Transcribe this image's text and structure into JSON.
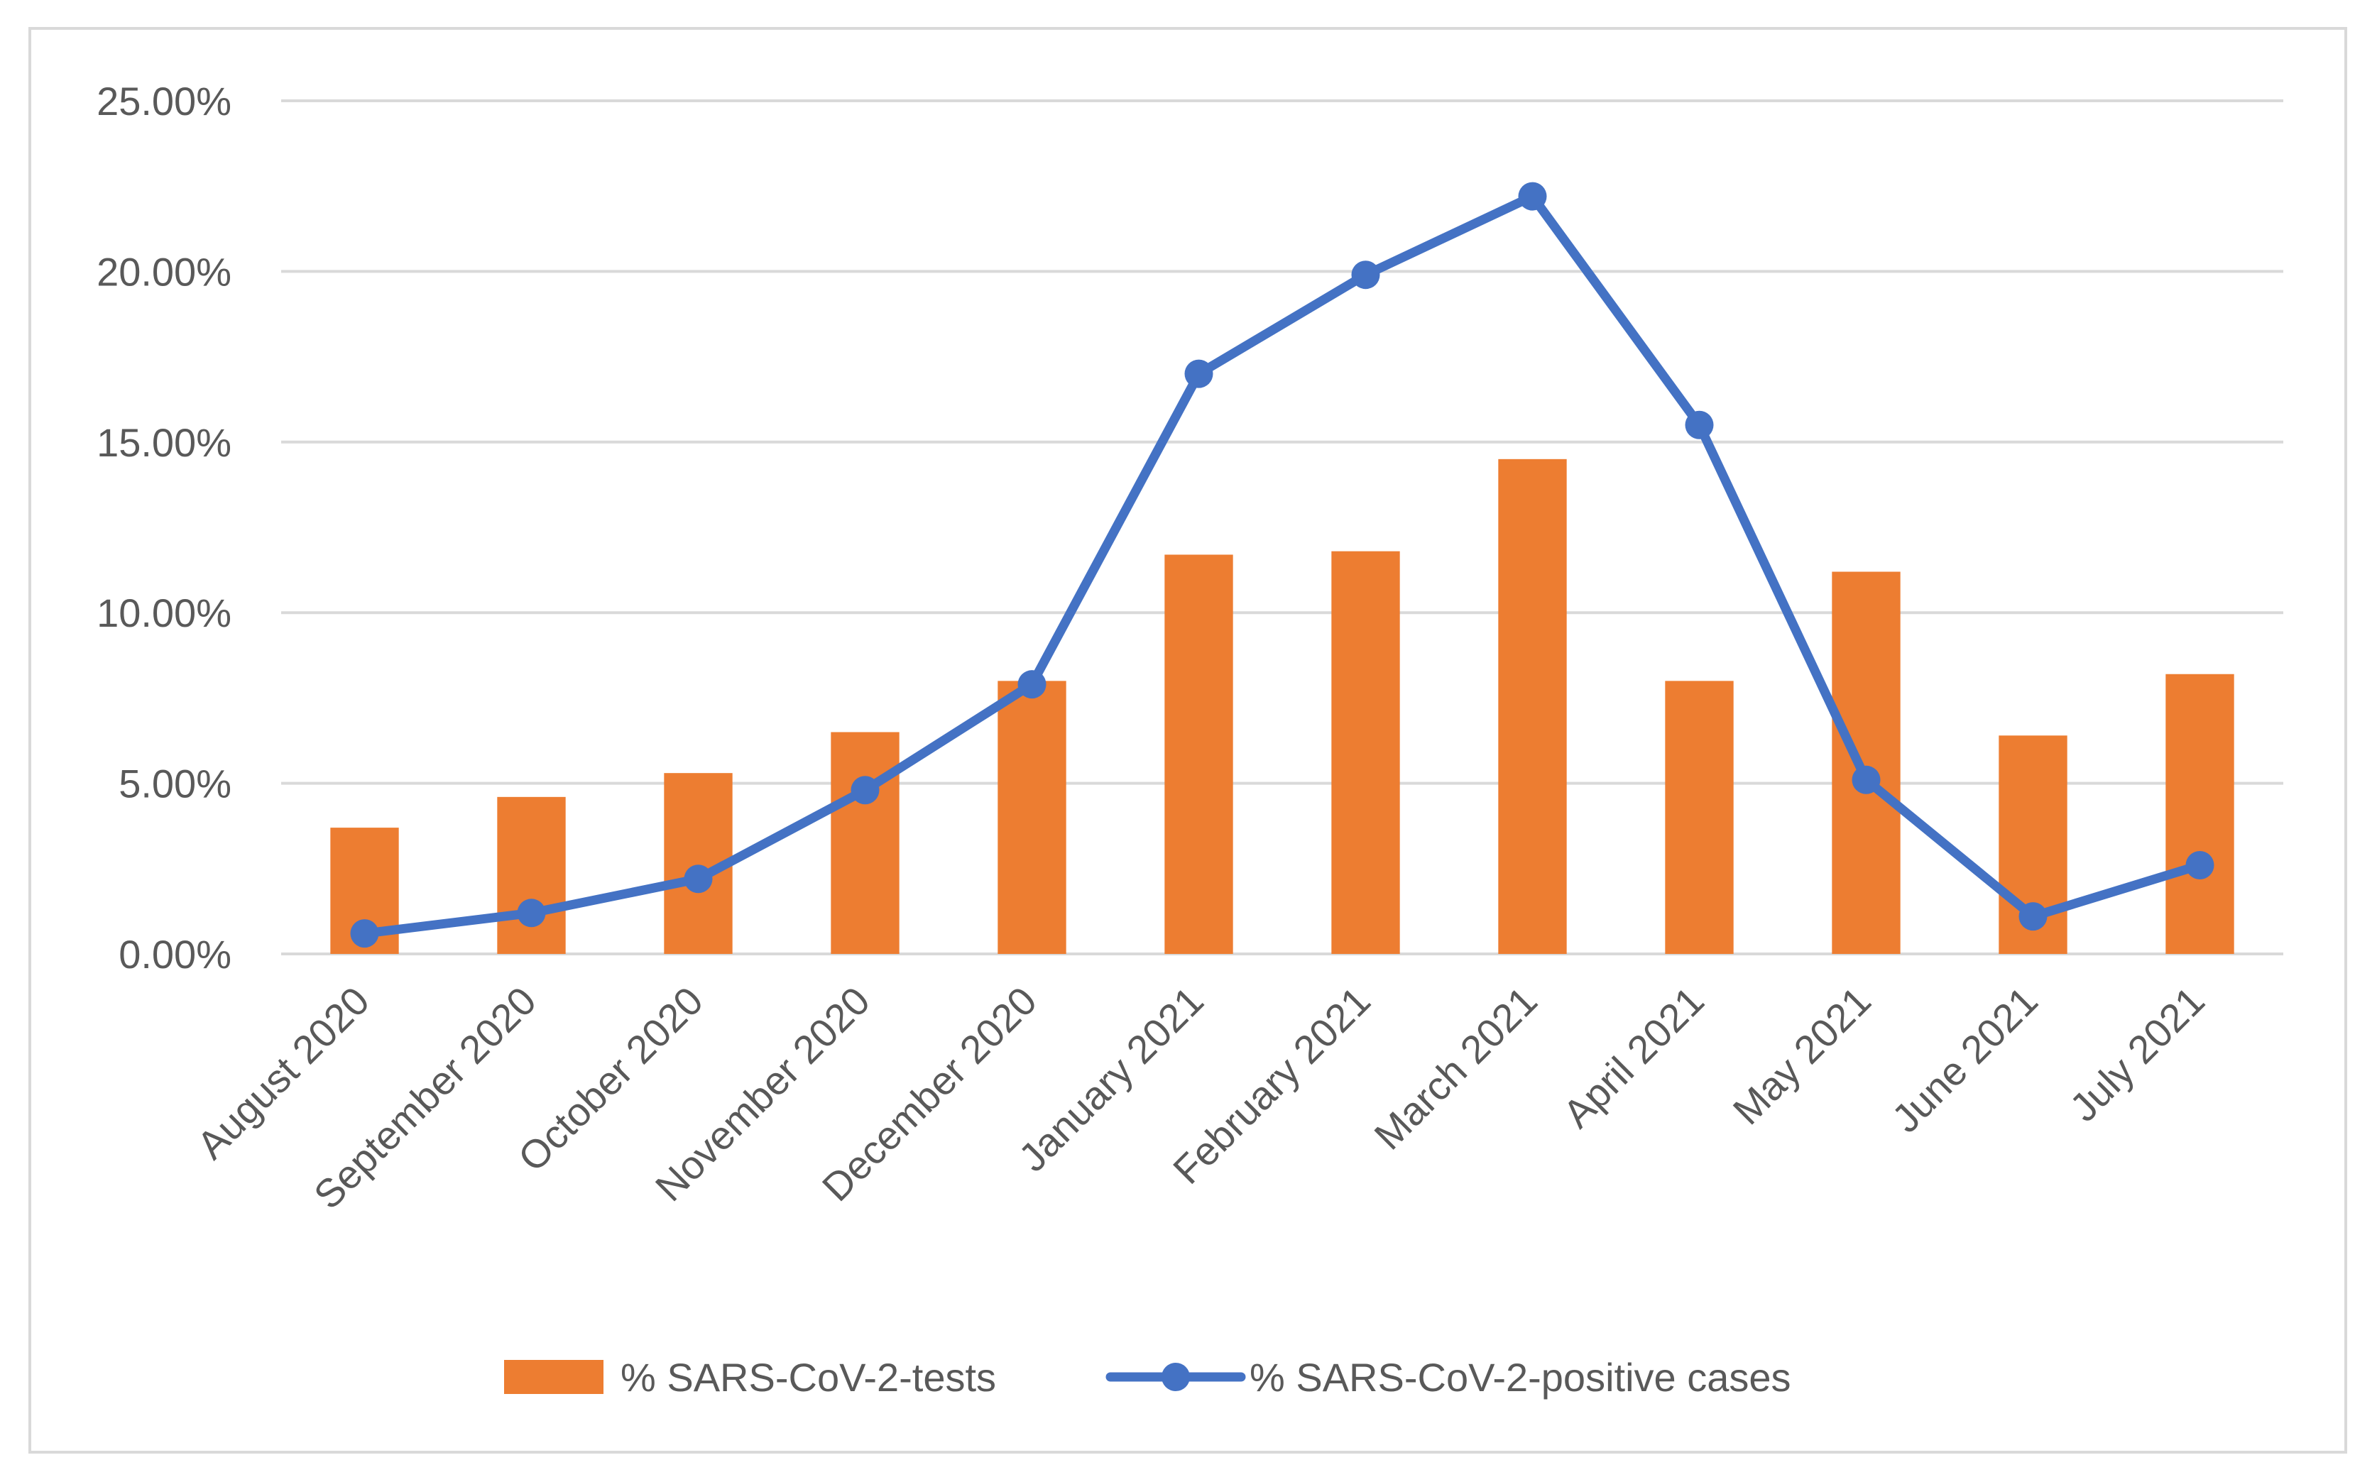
{
  "chart_data": {
    "type": "bar",
    "categories": [
      "August 2020",
      "September 2020",
      "October 2020",
      "November 2020",
      "December 2020",
      "January 2021",
      "February 2021",
      "March 2021",
      "April 2021",
      "May 2021",
      "June 2021",
      "July 2021"
    ],
    "series": [
      {
        "name": "% SARS-CoV-2-tests",
        "kind": "bar",
        "color": "#ed7d31",
        "values": [
          3.7,
          4.6,
          5.3,
          6.5,
          8.0,
          11.7,
          11.8,
          14.5,
          8.0,
          11.2,
          6.4,
          8.2
        ]
      },
      {
        "name": "% SARS-CoV-2-positive cases",
        "kind": "line",
        "color": "#4472c4",
        "values": [
          0.6,
          1.2,
          2.2,
          4.8,
          7.9,
          17.0,
          19.9,
          22.2,
          15.5,
          5.1,
          1.1,
          2.6
        ]
      }
    ],
    "title": "",
    "xlabel": "",
    "ylabel": "",
    "ylim": [
      0,
      25
    ],
    "yticks": [
      0,
      5,
      10,
      15,
      20,
      25
    ],
    "ytick_labels": [
      "0.00%",
      "5.00%",
      "10.00%",
      "15.00%",
      "20.00%",
      "25.00%"
    ],
    "grid": true,
    "legend_position": "bottom",
    "gridline_color": "#d9d9d9"
  }
}
